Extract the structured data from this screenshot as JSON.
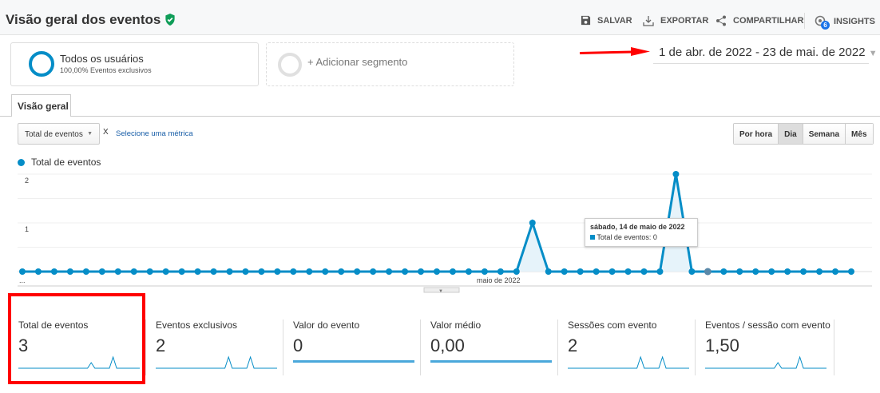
{
  "header": {
    "title": "Visão geral dos eventos",
    "verified_icon": "shield-check-icon",
    "actions": [
      {
        "label": "SALVAR",
        "icon": "save-icon"
      },
      {
        "label": "EXPORTAR",
        "icon": "download-icon"
      },
      {
        "label": "COMPARTILHAR",
        "icon": "share-icon"
      },
      {
        "label": "INSIGHTS",
        "icon": "insights-icon",
        "badge": "6"
      }
    ]
  },
  "segments": {
    "active": {
      "name": "Todos os usuários",
      "detail": "100,00% Eventos exclusivos"
    },
    "add_label": "+ Adicionar segmento"
  },
  "date_range": "1 de abr. de 2022 - 23 de mai. de 2022",
  "tab": "Visão geral",
  "metric_selector": {
    "selected": "Total de eventos",
    "remove": "X",
    "secondary": "Selecione uma métrica"
  },
  "granularity": {
    "options": [
      "Por hora",
      "Dia",
      "Semana",
      "Mês"
    ],
    "selected": "Dia"
  },
  "colors": {
    "series": "#058dc7",
    "fill": "#e6f3fa",
    "accent": "#1a73e8",
    "annotation": "#ff0000",
    "verified": "#0f9d58"
  },
  "chart_data": {
    "type": "area",
    "legend": "Total de eventos",
    "legend_position": "top-left",
    "x_start": "2022-04-01",
    "x_end": "2022-05-23",
    "x_tick_labels": [
      "...",
      "maio de 2022"
    ],
    "y_ticks": [
      "1",
      "2"
    ],
    "ylim": [
      0,
      2
    ],
    "grid": true,
    "series": [
      {
        "name": "Total de eventos",
        "values": [
          0,
          0,
          0,
          0,
          0,
          0,
          0,
          0,
          0,
          0,
          0,
          0,
          0,
          0,
          0,
          0,
          0,
          0,
          0,
          0,
          0,
          0,
          0,
          0,
          0,
          0,
          0,
          0,
          0,
          0,
          0,
          0,
          1,
          0,
          0,
          0,
          0,
          0,
          0,
          0,
          0,
          2,
          0,
          0,
          0,
          0,
          0,
          0,
          0,
          0,
          0,
          0,
          0
        ]
      }
    ]
  },
  "tooltip": {
    "title": "sábado, 14 de maio de 2022",
    "line": "Total de eventos: 0"
  },
  "metrics": [
    {
      "label": "Total de eventos",
      "value": "3",
      "spark": [
        1,
        2
      ]
    },
    {
      "label": "Eventos exclusivos",
      "value": "2",
      "spark": [
        1,
        1
      ]
    },
    {
      "label": "Valor do evento",
      "value": "0",
      "spark": null
    },
    {
      "label": "Valor médio",
      "value": "0,00",
      "spark": null
    },
    {
      "label": "Sessões com evento",
      "value": "2",
      "spark": [
        1,
        1
      ]
    },
    {
      "label": "Eventos / sessão com evento",
      "value": "1,50",
      "spark": [
        1,
        2
      ]
    }
  ]
}
